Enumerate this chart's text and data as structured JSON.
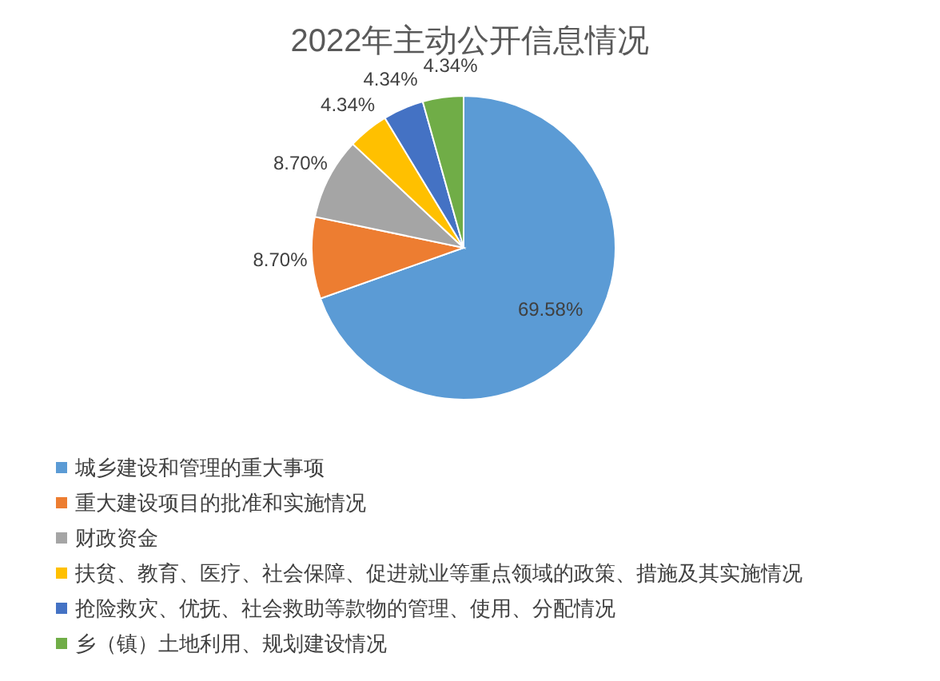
{
  "chart_data": {
    "type": "pie",
    "title": "2022年主动公开信息情况",
    "categories": [
      "城乡建设和管理的重大事项",
      "重大建设项目的批准和实施情况",
      "财政资金",
      "扶贫、教育、医疗、社会保障、促进就业等重点领域的政策、措施及其实施情况",
      "抢险救灾、优抚、社会救助等款物的管理、使用、分配情况",
      "乡（镇）土地利用、规划建设情况"
    ],
    "values": [
      69.58,
      8.7,
      8.7,
      4.34,
      4.34,
      4.34
    ],
    "value_labels": [
      "69.58%",
      "8.70%",
      "8.70%",
      "4.34%",
      "4.34%",
      "4.34%"
    ],
    "colors": [
      "#5b9bd5",
      "#ed7d31",
      "#a5a5a5",
      "#ffc000",
      "#4472c4",
      "#70ad47"
    ],
    "legend": "bottom"
  }
}
